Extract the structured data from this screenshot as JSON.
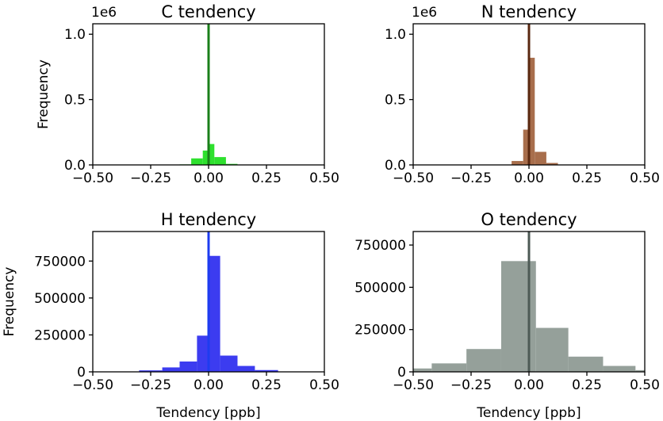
{
  "chart_data": [
    {
      "type": "bar",
      "title": "C tendency",
      "color": "#2ee02e",
      "vline_color": "#1a7f1a",
      "vline_x": 0.0,
      "ylabel": "Frequency",
      "xlabel": "",
      "offset_text": "1e6",
      "xlim": [
        -0.5,
        0.5
      ],
      "ylim": [
        0,
        1.08
      ],
      "xticks": [
        -0.5,
        -0.25,
        0.0,
        0.25,
        0.5
      ],
      "xtick_labels": [
        "−0.50",
        "−0.25",
        "0.00",
        "0.25",
        "0.50"
      ],
      "yticks": [
        0.0,
        0.5,
        1.0
      ],
      "ytick_labels": [
        "0.0",
        "0.5",
        "1.0"
      ],
      "bins": [
        {
          "x0": -0.125,
          "x1": -0.075,
          "value": 0.004
        },
        {
          "x0": -0.075,
          "x1": -0.025,
          "value": 0.05
        },
        {
          "x0": -0.025,
          "x1": -0.005,
          "value": 0.11
        },
        {
          "x0": -0.005,
          "x1": 0.005,
          "value": 0.86
        },
        {
          "x0": 0.005,
          "x1": 0.025,
          "value": 0.16
        },
        {
          "x0": 0.025,
          "x1": 0.075,
          "value": 0.06
        },
        {
          "x0": 0.075,
          "x1": 0.125,
          "value": 0.008
        }
      ]
    },
    {
      "type": "bar",
      "title": "N tendency",
      "color": "#a86e4c",
      "vline_color": "#5a2810",
      "vline_x": 0.0,
      "ylabel": "",
      "xlabel": "",
      "offset_text": "1e6",
      "xlim": [
        -0.5,
        0.5
      ],
      "ylim": [
        0,
        1.08
      ],
      "xticks": [
        -0.5,
        -0.25,
        0.0,
        0.25,
        0.5
      ],
      "xtick_labels": [
        "−0.50",
        "−0.25",
        "0.00",
        "0.25",
        "0.50"
      ],
      "yticks": [
        0.0,
        0.5,
        1.0
      ],
      "ytick_labels": [
        "0.0",
        "0.5",
        "1.0"
      ],
      "bins": [
        {
          "x0": -0.125,
          "x1": -0.075,
          "value": 0.003
        },
        {
          "x0": -0.075,
          "x1": -0.025,
          "value": 0.03
        },
        {
          "x0": -0.025,
          "x1": 0.0,
          "value": 0.27
        },
        {
          "x0": 0.0,
          "x1": 0.025,
          "value": 0.82
        },
        {
          "x0": 0.025,
          "x1": 0.075,
          "value": 0.1
        },
        {
          "x0": 0.075,
          "x1": 0.125,
          "value": 0.015
        }
      ]
    },
    {
      "type": "bar",
      "title": "H tendency",
      "color": "#3c3cf0",
      "vline_color": "#1e3cf0",
      "vline_x": 0.0,
      "ylabel": "Frequency",
      "xlabel": "Tendency [ppb]",
      "offset_text": "",
      "xlim": [
        -0.5,
        0.5
      ],
      "ylim": [
        0,
        950000
      ],
      "xticks": [
        -0.5,
        -0.25,
        0.0,
        0.25,
        0.5
      ],
      "xtick_labels": [
        "−0.50",
        "−0.25",
        "0.00",
        "0.25",
        "0.50"
      ],
      "yticks": [
        0,
        250000,
        500000,
        750000
      ],
      "ytick_labels": [
        "0",
        "250000",
        "500000",
        "750000"
      ],
      "bins": [
        {
          "x0": -0.3,
          "x1": -0.2,
          "value": 10000
        },
        {
          "x0": -0.2,
          "x1": -0.125,
          "value": 30000
        },
        {
          "x0": -0.125,
          "x1": -0.05,
          "value": 70000
        },
        {
          "x0": -0.05,
          "x1": 0.0,
          "value": 245000
        },
        {
          "x0": 0.0,
          "x1": 0.05,
          "value": 785000
        },
        {
          "x0": 0.05,
          "x1": 0.125,
          "value": 110000
        },
        {
          "x0": 0.125,
          "x1": 0.2,
          "value": 40000
        },
        {
          "x0": 0.2,
          "x1": 0.3,
          "value": 12000
        }
      ]
    },
    {
      "type": "bar",
      "title": "O tendency",
      "color": "#95a09a",
      "vline_color": "#4d5a55",
      "vline_x": 0.0,
      "ylabel": "",
      "xlabel": "Tendency [ppb]",
      "offset_text": "",
      "xlim": [
        -0.5,
        0.5
      ],
      "ylim": [
        0,
        830000
      ],
      "xticks": [
        -0.5,
        -0.25,
        0.0,
        0.25,
        0.5
      ],
      "xtick_labels": [
        "−0.50",
        "−0.25",
        "0.00",
        "0.25",
        "0.50"
      ],
      "yticks": [
        0,
        250000,
        500000,
        750000
      ],
      "ytick_labels": [
        "0",
        "250000",
        "500000",
        "750000"
      ],
      "bins": [
        {
          "x0": -0.5,
          "x1": -0.42,
          "value": 20000
        },
        {
          "x0": -0.42,
          "x1": -0.27,
          "value": 50000
        },
        {
          "x0": -0.27,
          "x1": -0.12,
          "value": 135000
        },
        {
          "x0": -0.12,
          "x1": 0.03,
          "value": 655000
        },
        {
          "x0": 0.03,
          "x1": 0.17,
          "value": 260000
        },
        {
          "x0": 0.17,
          "x1": 0.32,
          "value": 90000
        },
        {
          "x0": 0.32,
          "x1": 0.46,
          "value": 35000
        },
        {
          "x0": 0.46,
          "x1": 0.5,
          "value": 10000
        }
      ]
    }
  ]
}
